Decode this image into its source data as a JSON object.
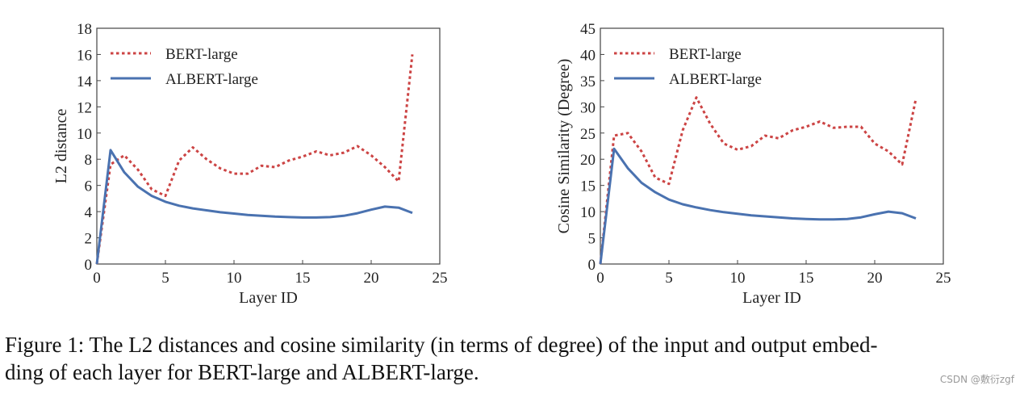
{
  "chart_data": [
    {
      "type": "line",
      "title": "",
      "xlabel": "Layer ID",
      "ylabel": "L2 distance",
      "xlim": [
        0,
        25
      ],
      "ylim": [
        0,
        18
      ],
      "xticks": [
        "0",
        "5",
        "10",
        "15",
        "20",
        "25"
      ],
      "yticks": [
        "0",
        "2",
        "4",
        "6",
        "8",
        "10",
        "12",
        "14",
        "16",
        "18"
      ],
      "grid": false,
      "legend_position": "top-left",
      "x": [
        0,
        1,
        2,
        3,
        4,
        5,
        6,
        7,
        8,
        9,
        10,
        11,
        12,
        13,
        14,
        15,
        16,
        17,
        18,
        19,
        20,
        21,
        22,
        23
      ],
      "series": [
        {
          "name": "BERT-large",
          "color": "#cc4444",
          "style": "dotted",
          "values": [
            0,
            7.6,
            8.3,
            7.2,
            5.7,
            5.2,
            7.9,
            8.9,
            8.0,
            7.3,
            6.9,
            6.9,
            7.5,
            7.4,
            7.9,
            8.2,
            8.6,
            8.3,
            8.5,
            9.0,
            8.3,
            7.4,
            6.3,
            16.0
          ]
        },
        {
          "name": "ALBERT-large",
          "color": "#4a72b0",
          "style": "solid",
          "values": [
            0,
            8.7,
            7.0,
            5.9,
            5.2,
            4.75,
            4.45,
            4.25,
            4.1,
            3.95,
            3.85,
            3.75,
            3.68,
            3.62,
            3.58,
            3.55,
            3.55,
            3.58,
            3.68,
            3.88,
            4.15,
            4.38,
            4.3,
            3.9
          ]
        }
      ]
    },
    {
      "type": "line",
      "title": "",
      "xlabel": "Layer ID",
      "ylabel": "Cosine Similarity (Degree)",
      "xlim": [
        0,
        25
      ],
      "ylim": [
        0,
        45
      ],
      "xticks": [
        "0",
        "5",
        "10",
        "15",
        "20",
        "25"
      ],
      "yticks": [
        "0",
        "5",
        "10",
        "15",
        "20",
        "25",
        "30",
        "35",
        "40",
        "45"
      ],
      "grid": false,
      "legend_position": "top-left",
      "x": [
        0,
        1,
        2,
        3,
        4,
        5,
        6,
        7,
        8,
        9,
        10,
        11,
        12,
        13,
        14,
        15,
        16,
        17,
        18,
        19,
        20,
        21,
        22,
        23
      ],
      "series": [
        {
          "name": "BERT-large",
          "color": "#cc4444",
          "style": "dotted",
          "values": [
            0,
            24.5,
            25.0,
            21.5,
            16.5,
            15.3,
            25.5,
            31.8,
            26.8,
            23.0,
            21.8,
            22.5,
            24.5,
            24.0,
            25.5,
            26.2,
            27.2,
            26.0,
            26.2,
            26.2,
            23.0,
            21.5,
            19.0,
            31.5
          ]
        },
        {
          "name": "ALBERT-large",
          "color": "#4a72b0",
          "style": "solid",
          "values": [
            0,
            22.0,
            18.3,
            15.5,
            13.7,
            12.3,
            11.4,
            10.8,
            10.3,
            9.9,
            9.6,
            9.3,
            9.1,
            8.9,
            8.7,
            8.6,
            8.5,
            8.5,
            8.6,
            8.9,
            9.5,
            10.0,
            9.7,
            8.7
          ]
        }
      ]
    }
  ],
  "caption": "Figure 1: The L2 distances and cosine similarity (in terms of degree) of the input and output embedding of each layer for BERT-large and ALBERT-large.",
  "caption_line1": "Figure 1: The L2 distances and cosine similarity (in terms of degree) of the input and output embed-",
  "caption_line2": "ding of each layer for BERT-large and ALBERT-large.",
  "watermark": "CSDN @敷衍zgf"
}
